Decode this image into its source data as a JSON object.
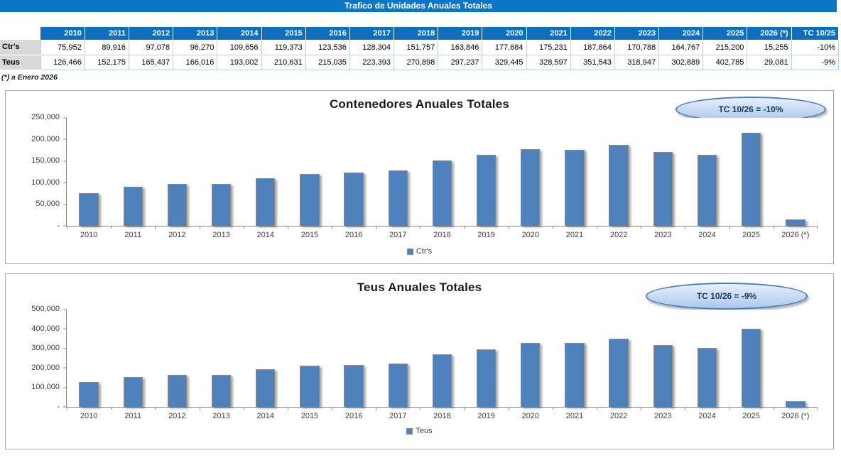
{
  "title_bar": {
    "text": "Trafico de Unidades Anuales Totales"
  },
  "table": {
    "columns": [
      "2010",
      "2011",
      "2012",
      "2013",
      "2014",
      "2015",
      "2016",
      "2017",
      "2018",
      "2019",
      "2020",
      "2021",
      "2022",
      "2023",
      "2024",
      "2025",
      "2026 (*)",
      "TC 10/25"
    ],
    "rows": [
      {
        "label": "Ctr's",
        "values": [
          "75,952",
          "89,916",
          "97,078",
          "96,270",
          "109,656",
          "119,373",
          "123,536",
          "128,304",
          "151,757",
          "163,846",
          "177,684",
          "175,231",
          "187,864",
          "170,788",
          "164,767",
          "215,200",
          "15,255",
          "-10%"
        ]
      },
      {
        "label": "Teus",
        "values": [
          "126,466",
          "152,175",
          "165,437",
          "166,016",
          "193,002",
          "210,631",
          "215,035",
          "223,393",
          "270,898",
          "297,237",
          "329,445",
          "328,597",
          "351,543",
          "318,947",
          "302,889",
          "402,785",
          "29,081",
          "-9%"
        ]
      }
    ]
  },
  "footnote": "(*) a Enero 2026",
  "colors": {
    "title_bar_blue": "#0b76c6",
    "table_header_blue": "#0d6fbe",
    "row_label_gray": "#d9d9d9",
    "bar_blue": "#4F81BD",
    "badge_border_blue": "#4a7ebb",
    "badge_text_navy": "#17375e"
  },
  "chart_data": [
    {
      "type": "bar",
      "title": "Contenedores Anuales Totales",
      "annotation": "TC 10/26 = -10%",
      "categories": [
        "2010",
        "2011",
        "2012",
        "2013",
        "2014",
        "2015",
        "2016",
        "2017",
        "2018",
        "2019",
        "2020",
        "2021",
        "2022",
        "2023",
        "2024",
        "2025",
        "2026 (*)"
      ],
      "values": [
        75952,
        89916,
        97078,
        96270,
        109656,
        119373,
        123536,
        128304,
        151757,
        163846,
        177684,
        175231,
        187864,
        170788,
        164767,
        215200,
        15255
      ],
      "xlabel": "",
      "ylabel": "",
      "ylim": [
        0,
        250000
      ],
      "y_tick_labels": [
        "250,000",
        "200,000",
        "150,000",
        "100,000",
        "50,000",
        "-"
      ],
      "legend": [
        "Ctr's"
      ],
      "legend_position": "bottom",
      "grid": false,
      "bar_color": "#4F81BD"
    },
    {
      "type": "bar",
      "title": "Teus Anuales Totales",
      "annotation": "TC 10/26 = -9%",
      "categories": [
        "2010",
        "2011",
        "2012",
        "2013",
        "2014",
        "2015",
        "2016",
        "2017",
        "2018",
        "2019",
        "2020",
        "2021",
        "2022",
        "2023",
        "2024",
        "2025",
        "2026 (*)"
      ],
      "values": [
        126466,
        152175,
        165437,
        166016,
        193002,
        210631,
        215035,
        223393,
        270898,
        297237,
        329445,
        328597,
        351543,
        318947,
        302889,
        402785,
        29081
      ],
      "xlabel": "",
      "ylabel": "",
      "ylim": [
        0,
        500000
      ],
      "y_tick_labels": [
        "500,000",
        "400,000",
        "300,000",
        "200,000",
        "100,000",
        "-"
      ],
      "legend": [
        "Teus"
      ],
      "legend_position": "bottom",
      "grid": false,
      "bar_color": "#4F81BD"
    }
  ]
}
